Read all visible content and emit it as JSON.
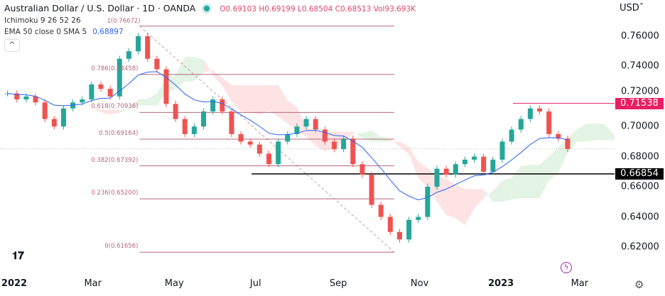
{
  "header": {
    "symbol": "Australian Dollar / U.S. Dollar · 1D · OANDA",
    "status_color": "#26a69a",
    "open": "O0.69103",
    "high": "H0.69199",
    "low": "L0.68504",
    "close": "C0.68513",
    "volume": "Vol93.693K"
  },
  "indicators": [
    {
      "label": "Ichimoku 9 26 52 26",
      "value": ""
    },
    {
      "label": "EMA 50 close 0 SMA 5",
      "value": "0.68897"
    }
  ],
  "collapse_icon": "chevron-up-icon",
  "currency": "USD",
  "chart_data": {
    "type": "candlestick",
    "xlabel": "",
    "ylabel": "",
    "ylim": [
      0.606,
      0.785
    ],
    "y_ticks": [
      "0.76000",
      "0.74000",
      "0.72000",
      "0.70000",
      "0.68000",
      "0.66000",
      "0.64000",
      "0.62000"
    ],
    "y_tick_values": [
      0.76,
      0.74,
      0.72,
      0.7,
      0.68,
      0.66,
      0.64,
      0.62
    ],
    "x_ticks": [
      {
        "label": "2022",
        "date": "2022-01-01",
        "bold": true
      },
      {
        "label": "Mar",
        "date": "2022-03-01"
      },
      {
        "label": "May",
        "date": "2022-05-01"
      },
      {
        "label": "Jul",
        "date": "2022-07-01"
      },
      {
        "label": "Sep",
        "date": "2022-09-01"
      },
      {
        "label": "Nov",
        "date": "2022-11-01"
      },
      {
        "label": "2023",
        "date": "2023-01-01",
        "bold": true
      },
      {
        "label": "Mar",
        "date": "2023-03-01"
      }
    ],
    "start_date": "2021-12-27",
    "interval_days": 7,
    "close": [
      0.722,
      0.718,
      0.72,
      0.716,
      0.705,
      0.7,
      0.712,
      0.716,
      0.718,
      0.728,
      0.725,
      0.72,
      0.745,
      0.75,
      0.76,
      0.745,
      0.738,
      0.715,
      0.705,
      0.695,
      0.7,
      0.71,
      0.718,
      0.71,
      0.695,
      0.69,
      0.688,
      0.682,
      0.675,
      0.69,
      0.695,
      0.7,
      0.705,
      0.698,
      0.69,
      0.685,
      0.692,
      0.675,
      0.668,
      0.648,
      0.64,
      0.63,
      0.625,
      0.638,
      0.64,
      0.66,
      0.672,
      0.668,
      0.675,
      0.678,
      0.68,
      0.67,
      0.678,
      0.69,
      0.698,
      0.705,
      0.712,
      0.71,
      0.695,
      0.692,
      0.68513
    ],
    "last_price": 0.68513,
    "ema50_last": 0.68897,
    "fibonacci": {
      "from_date": "2022-04-05",
      "to_date": "2022-10-13",
      "levels": [
        {
          "label": "1(0.76672)",
          "value": 0.76672
        },
        {
          "label": "0.786(0.73458)",
          "value": 0.73458
        },
        {
          "label": "0.618(0.70936)",
          "value": 0.70936
        },
        {
          "label": "0.5(0.69164)",
          "value": 0.69164
        },
        {
          "label": "0.382(0.67392)",
          "value": 0.67392
        },
        {
          "label": "0.236(0.65200)",
          "value": 0.652
        },
        {
          "label": "0(0.61656)",
          "value": 0.61656
        }
      ],
      "color": "#b5677c"
    },
    "horizontal_lines": [
      {
        "label": "0.71538",
        "value": 0.71538,
        "from_date": "2023-01-10",
        "color": "#e91e63"
      },
      {
        "label": "0.66854",
        "value": 0.66854,
        "from_date": "2022-06-28",
        "color": "#000000"
      }
    ],
    "colors": {
      "up": "#26a69a",
      "down": "#ef5350",
      "ema": "#2962ff",
      "cloud_up": "#e3f3e4",
      "cloud_down": "#fde3e3"
    }
  }
}
